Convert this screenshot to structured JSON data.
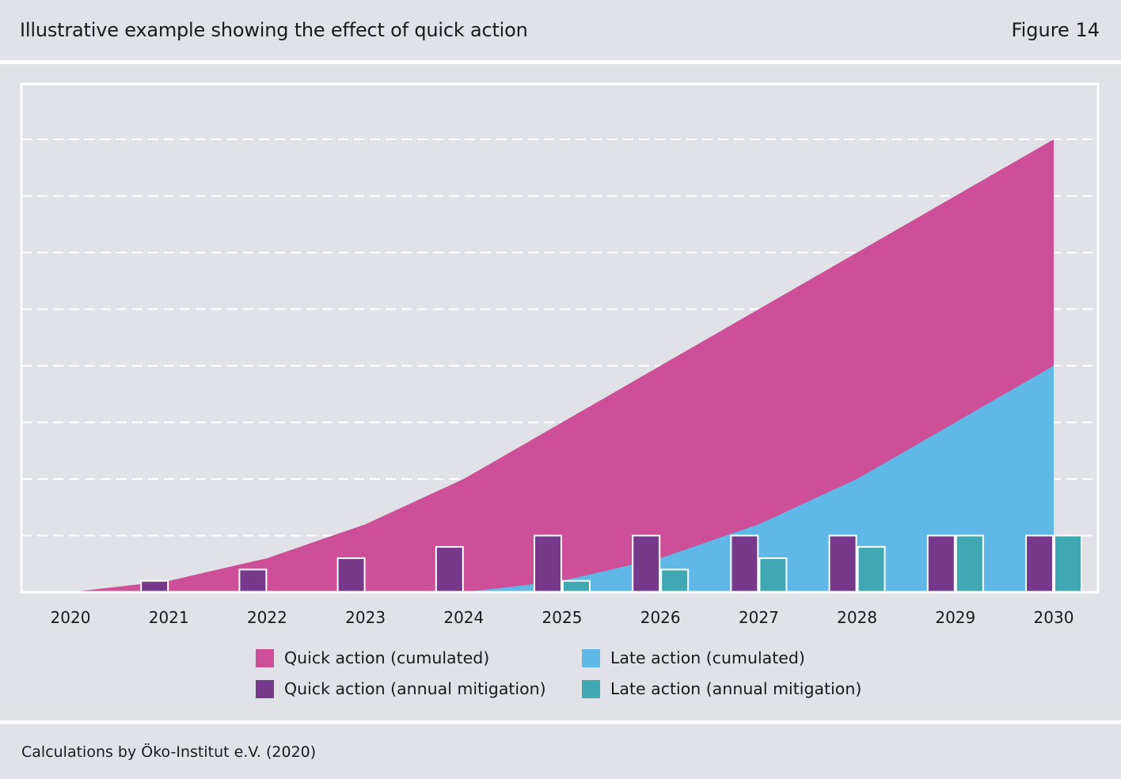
{
  "header": {
    "title": "Illustrative example showing the effect of quick action",
    "figure_label": "Figure 14"
  },
  "footer": {
    "source": "Calculations by Öko-Institut e.V. (2020)"
  },
  "colors": {
    "panel_background": "#e1e2e7",
    "quick_cumulated": "#cc4f97",
    "late_cumulated": "#5fb8e6",
    "quick_annual": "#773a8a",
    "late_annual": "#40a8b3",
    "grid": "#ffffff"
  },
  "legend": [
    {
      "label": "Quick action (cumulated)",
      "color": "#cc4f97"
    },
    {
      "label": "Late action (cumulated)",
      "color": "#5fb8e6"
    },
    {
      "label": "Quick action (annual mitigation)",
      "color": "#773a8a"
    },
    {
      "label": "Late action (annual mitigation)",
      "color": "#40a8b3"
    }
  ],
  "chart_data": {
    "type": "area",
    "title": "Illustrative example showing the effect of quick action",
    "xlabel": "",
    "ylabel": "",
    "y_tick_labels": "none",
    "grid": "horizontal dashed",
    "ylim": [
      0,
      9
    ],
    "categories": [
      "2020",
      "2021",
      "2022",
      "2023",
      "2024",
      "2025",
      "2026",
      "2027",
      "2028",
      "2029",
      "2030"
    ],
    "series": [
      {
        "name": "Quick action (cumulated)",
        "kind": "area",
        "values": [
          0,
          0.2,
          0.6,
          1.2,
          2,
          3,
          4,
          5,
          6,
          7,
          8
        ]
      },
      {
        "name": "Late action (cumulated)",
        "kind": "area",
        "values": [
          0,
          0,
          0,
          0,
          0,
          0.2,
          0.6,
          1.2,
          2,
          3,
          4
        ]
      },
      {
        "name": "Quick action (annual mitigation)",
        "kind": "bar",
        "values": [
          0,
          0.2,
          0.4,
          0.6,
          0.8,
          1,
          1,
          1,
          1,
          1,
          1
        ]
      },
      {
        "name": "Late action (annual mitigation)",
        "kind": "bar",
        "values": [
          0,
          0,
          0,
          0,
          0,
          0.2,
          0.4,
          0.6,
          0.8,
          1,
          1
        ]
      }
    ]
  }
}
